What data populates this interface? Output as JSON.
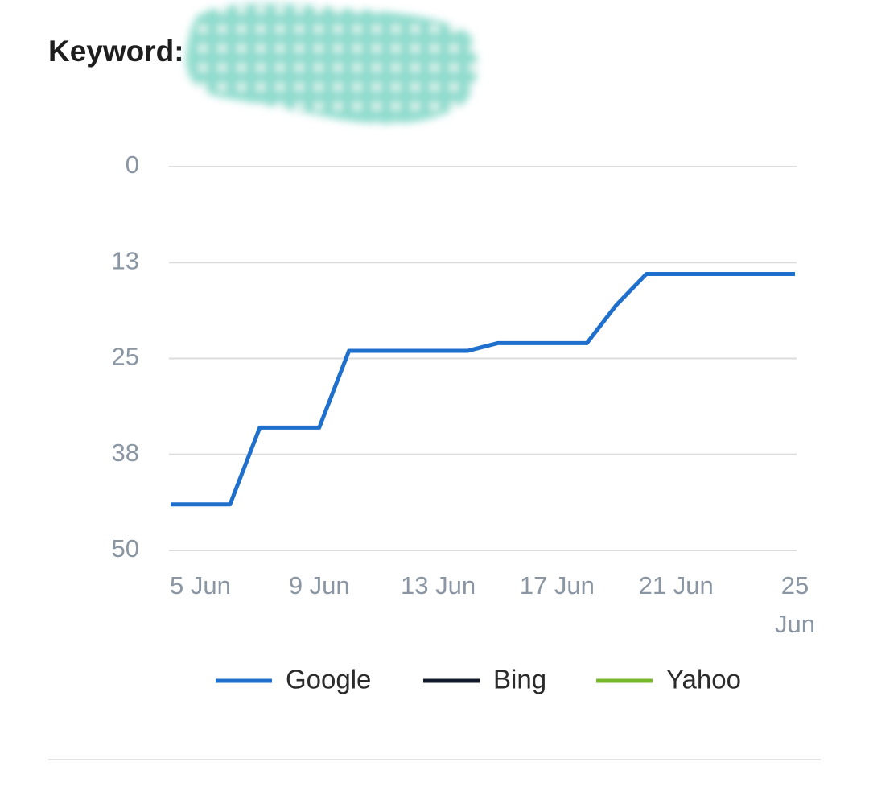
{
  "chart_data": {
    "type": "line",
    "title": "Keyword:",
    "categories": [
      null,
      "5 Jun",
      null,
      null,
      null,
      "9 Jun",
      null,
      null,
      null,
      "13 Jun",
      null,
      null,
      null,
      "17 Jun",
      null,
      null,
      null,
      "21 Jun",
      null,
      null,
      null,
      "25 Jun"
    ],
    "series": [
      {
        "name": "Google",
        "color": "#1f6fcc",
        "values": [
          44,
          44,
          44,
          34,
          34,
          34,
          24,
          24,
          24,
          24,
          24,
          23,
          23,
          23,
          23,
          18,
          14,
          14,
          14,
          14,
          14,
          14
        ]
      },
      {
        "name": "Bing",
        "color": "#111a2a",
        "values": [
          null,
          null,
          null,
          null,
          null,
          null,
          null,
          null,
          null,
          null,
          null,
          null,
          null,
          null,
          null,
          null,
          null,
          null,
          null,
          null,
          null,
          null
        ]
      },
      {
        "name": "Yahoo",
        "color": "#77b82a",
        "values": [
          null,
          null,
          null,
          null,
          null,
          null,
          null,
          null,
          null,
          null,
          null,
          null,
          null,
          null,
          null,
          null,
          null,
          null,
          null,
          null,
          null,
          null
        ]
      }
    ],
    "ylim": [
      0,
      50
    ],
    "y_reversed": true,
    "yticks": [
      0,
      {
        "value": 12.5,
        "label": "13"
      },
      25,
      {
        "value": 37.5,
        "label": "38"
      },
      50
    ],
    "grid": true,
    "legend": "bottom"
  }
}
